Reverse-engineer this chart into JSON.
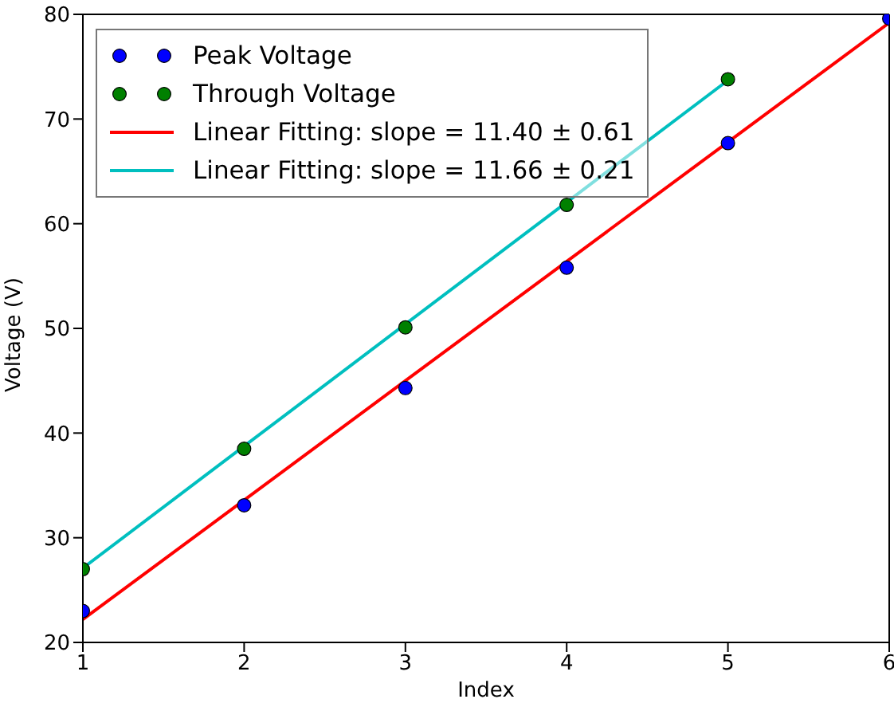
{
  "chart_data": {
    "type": "scatter",
    "xlabel": "Index",
    "ylabel": "Voltage (V)",
    "xlim": [
      1,
      6
    ],
    "ylim": [
      20,
      80
    ],
    "xticks": [
      1,
      2,
      3,
      4,
      5,
      6
    ],
    "yticks": [
      20,
      30,
      40,
      50,
      60,
      70,
      80
    ],
    "grid": false,
    "legend": "top left",
    "series": [
      {
        "name": "Peak Voltage",
        "marker": "circle",
        "color": "#0000ff",
        "x": [
          1,
          2,
          3,
          4,
          5,
          6
        ],
        "values": [
          23.0,
          33.1,
          44.3,
          55.8,
          67.7,
          79.6
        ]
      },
      {
        "name": "Through Voltage",
        "marker": "circle",
        "color": "#008000",
        "x": [
          1,
          2,
          3,
          4,
          5
        ],
        "values": [
          27.0,
          38.5,
          50.1,
          61.8,
          73.8
        ]
      },
      {
        "name": "Linear Fitting: slope = 11.40 ± 0.61",
        "type": "line",
        "marker": "none",
        "line_style": "solid",
        "color": "#ff0000",
        "x": [
          1,
          6
        ],
        "values": [
          22.2,
          79.2
        ]
      },
      {
        "name": "Linear Fitting: slope = 11.66 ± 0.21",
        "type": "line",
        "marker": "none",
        "line_style": "solid",
        "color": "#00bfbf",
        "x": [
          1,
          5
        ],
        "values": [
          27.1,
          73.7
        ]
      }
    ]
  }
}
